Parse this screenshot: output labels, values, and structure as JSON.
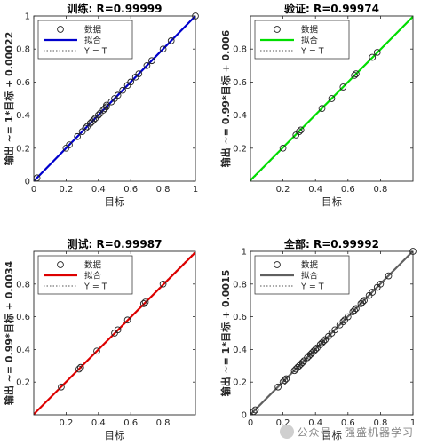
{
  "watermark": "公众号 · 强盛机器学习",
  "chart_data": [
    {
      "type": "scatter",
      "title": "训练: R=0.99999",
      "xlabel": "目标",
      "ylabel": "输出 ~= 1*目标 + 0.00022",
      "xlim": [
        0,
        1
      ],
      "ylim": [
        0,
        1
      ],
      "xticks": [
        "0",
        "0.2",
        "0.4",
        "0.6",
        "0.8",
        "1"
      ],
      "yticks": [
        "0",
        "0.2",
        "0.4",
        "0.6",
        "0.8",
        "1"
      ],
      "fit_color": "#0000cc",
      "fit": {
        "slope": 1,
        "intercept": 0.00022
      },
      "legend": [
        "数据",
        "拟合",
        "Y = T"
      ],
      "legend_position": "top-left",
      "points": [
        [
          0.02,
          0.02
        ],
        [
          0.2,
          0.2
        ],
        [
          0.22,
          0.22
        ],
        [
          0.27,
          0.27
        ],
        [
          0.3,
          0.3
        ],
        [
          0.32,
          0.32
        ],
        [
          0.33,
          0.33
        ],
        [
          0.35,
          0.35
        ],
        [
          0.36,
          0.36
        ],
        [
          0.37,
          0.37
        ],
        [
          0.38,
          0.38
        ],
        [
          0.4,
          0.4
        ],
        [
          0.41,
          0.41
        ],
        [
          0.43,
          0.43
        ],
        [
          0.44,
          0.44
        ],
        [
          0.45,
          0.45
        ],
        [
          0.45,
          0.46
        ],
        [
          0.48,
          0.48
        ],
        [
          0.5,
          0.5
        ],
        [
          0.52,
          0.52
        ],
        [
          0.55,
          0.55
        ],
        [
          0.58,
          0.58
        ],
        [
          0.6,
          0.6
        ],
        [
          0.63,
          0.63
        ],
        [
          0.65,
          0.65
        ],
        [
          0.7,
          0.7
        ],
        [
          0.73,
          0.73
        ],
        [
          0.8,
          0.8
        ],
        [
          0.85,
          0.85
        ],
        [
          1.0,
          1.0
        ]
      ]
    },
    {
      "type": "scatter",
      "title": "验证: R=0.99974",
      "xlabel": "目标",
      "ylabel": "输出 ~= 0.99*目标 + 0.006",
      "xlim": [
        0,
        1
      ],
      "ylim": [
        0,
        1
      ],
      "xticks": [
        "0.2",
        "0.4",
        "0.6",
        "0.8"
      ],
      "yticks": [
        "0.2",
        "0.4",
        "0.6",
        "0.8"
      ],
      "fit_color": "#00dd00",
      "fit": {
        "slope": 0.99,
        "intercept": 0.006
      },
      "legend": [
        "数据",
        "拟合",
        "Y = T"
      ],
      "legend_position": "top-left",
      "points": [
        [
          0.2,
          0.2
        ],
        [
          0.28,
          0.28
        ],
        [
          0.3,
          0.3
        ],
        [
          0.31,
          0.31
        ],
        [
          0.44,
          0.44
        ],
        [
          0.5,
          0.5
        ],
        [
          0.57,
          0.57
        ],
        [
          0.64,
          0.64
        ],
        [
          0.65,
          0.65
        ],
        [
          0.75,
          0.75
        ],
        [
          0.78,
          0.78
        ]
      ]
    },
    {
      "type": "scatter",
      "title": "测试: R=0.99987",
      "xlabel": "目标",
      "ylabel": "输出 ~= 0.99*目标 + 0.0034",
      "xlim": [
        0,
        1
      ],
      "ylim": [
        0,
        1
      ],
      "xticks": [
        "0.2",
        "0.4",
        "0.6",
        "0.8"
      ],
      "yticks": [
        "0.2",
        "0.4",
        "0.6",
        "0.8"
      ],
      "fit_color": "#dd0000",
      "fit": {
        "slope": 0.99,
        "intercept": 0.0034
      },
      "legend": [
        "数据",
        "拟合",
        "Y = T"
      ],
      "legend_position": "top-left",
      "points": [
        [
          0.17,
          0.17
        ],
        [
          0.28,
          0.28
        ],
        [
          0.29,
          0.29
        ],
        [
          0.39,
          0.39
        ],
        [
          0.5,
          0.5
        ],
        [
          0.52,
          0.52
        ],
        [
          0.58,
          0.58
        ],
        [
          0.68,
          0.68
        ],
        [
          0.69,
          0.69
        ],
        [
          0.8,
          0.8
        ]
      ]
    },
    {
      "type": "scatter",
      "title": "全部: R=0.99992",
      "xlabel": "目标",
      "ylabel": "输出 ~= 1*目标 + 0.0015",
      "xlim": [
        0,
        1
      ],
      "ylim": [
        0,
        1
      ],
      "xticks": [
        "0",
        "0.2",
        "0.4",
        "0.6",
        "0.8",
        "1"
      ],
      "yticks": [
        "0",
        "0.2",
        "0.4",
        "0.6",
        "0.8",
        "1"
      ],
      "fit_color": "#606060",
      "fit": {
        "slope": 1,
        "intercept": 0.0015
      },
      "legend": [
        "数据",
        "拟合",
        "Y = T"
      ],
      "legend_position": "top-left",
      "points": [
        [
          0.02,
          0.02
        ],
        [
          0.03,
          0.03
        ],
        [
          0.17,
          0.17
        ],
        [
          0.2,
          0.2
        ],
        [
          0.21,
          0.21
        ],
        [
          0.22,
          0.22
        ],
        [
          0.27,
          0.27
        ],
        [
          0.28,
          0.28
        ],
        [
          0.29,
          0.29
        ],
        [
          0.3,
          0.3
        ],
        [
          0.31,
          0.31
        ],
        [
          0.32,
          0.32
        ],
        [
          0.33,
          0.33
        ],
        [
          0.35,
          0.35
        ],
        [
          0.36,
          0.36
        ],
        [
          0.37,
          0.37
        ],
        [
          0.38,
          0.38
        ],
        [
          0.39,
          0.39
        ],
        [
          0.4,
          0.4
        ],
        [
          0.41,
          0.41
        ],
        [
          0.43,
          0.43
        ],
        [
          0.44,
          0.44
        ],
        [
          0.45,
          0.45
        ],
        [
          0.46,
          0.46
        ],
        [
          0.48,
          0.48
        ],
        [
          0.5,
          0.5
        ],
        [
          0.52,
          0.52
        ],
        [
          0.55,
          0.55
        ],
        [
          0.57,
          0.57
        ],
        [
          0.58,
          0.58
        ],
        [
          0.6,
          0.6
        ],
        [
          0.63,
          0.63
        ],
        [
          0.64,
          0.64
        ],
        [
          0.65,
          0.65
        ],
        [
          0.68,
          0.68
        ],
        [
          0.69,
          0.69
        ],
        [
          0.7,
          0.7
        ],
        [
          0.73,
          0.73
        ],
        [
          0.75,
          0.75
        ],
        [
          0.78,
          0.78
        ],
        [
          0.8,
          0.8
        ],
        [
          0.85,
          0.85
        ],
        [
          1.0,
          1.0
        ]
      ]
    }
  ]
}
